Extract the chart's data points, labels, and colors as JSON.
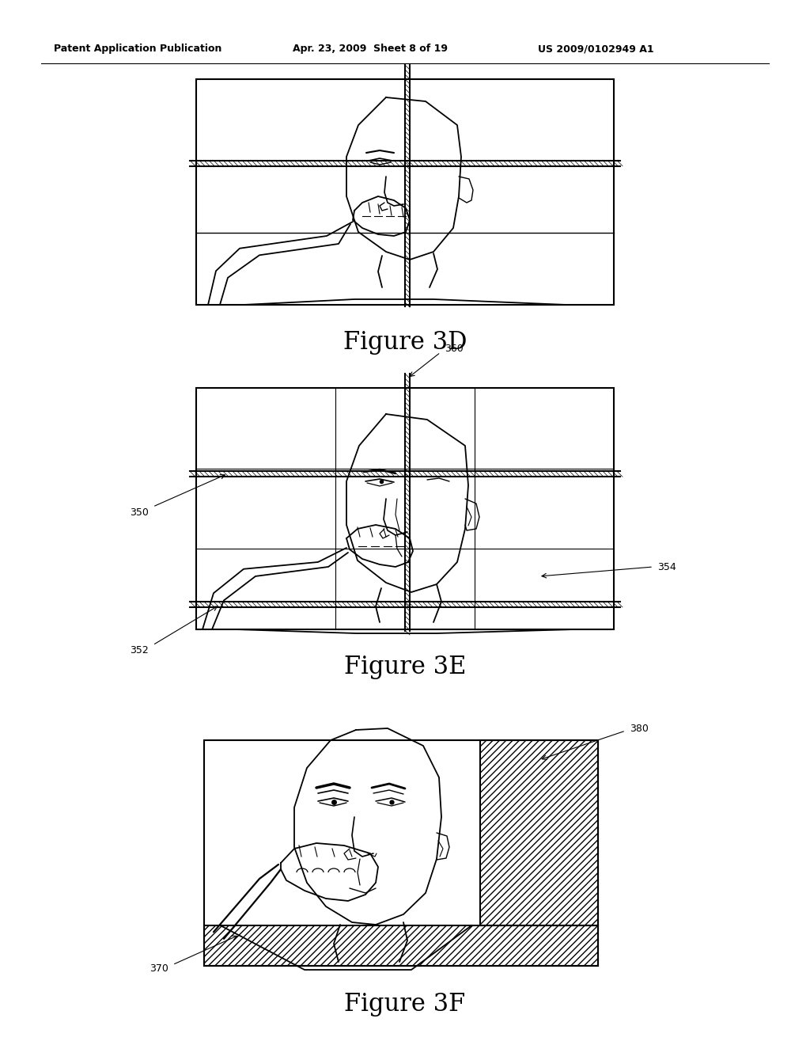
{
  "header_left": "Patent Application Publication",
  "header_mid": "Apr. 23, 2009  Sheet 8 of 19",
  "header_right": "US 2009/0102949 A1",
  "fig3d_label": "Figure 3D",
  "fig3e_label": "Figure 3E",
  "fig3f_label": "Figure 3F",
  "label_350": "350",
  "label_352": "352",
  "label_354": "354",
  "label_360": "360",
  "label_370": "370",
  "label_380": "380",
  "bg_color": "#ffffff"
}
